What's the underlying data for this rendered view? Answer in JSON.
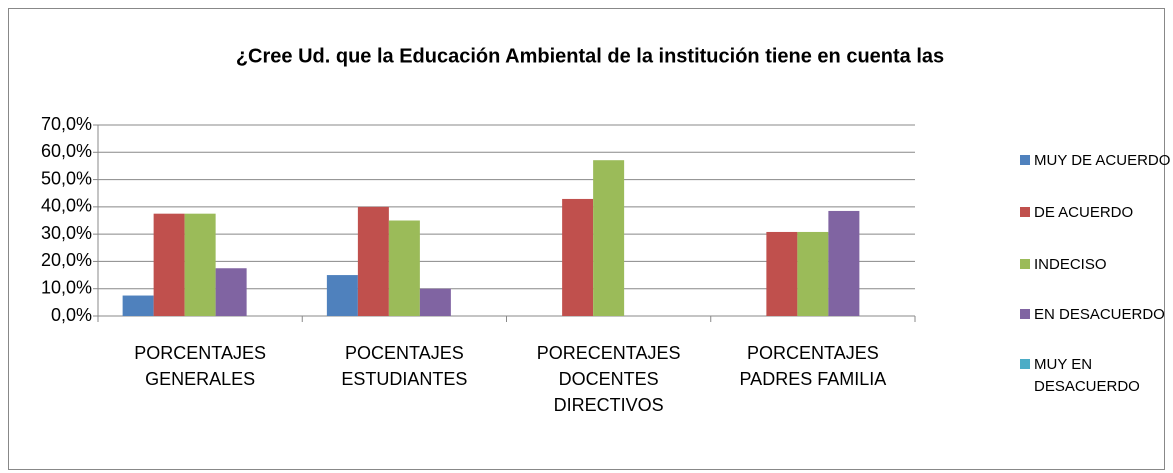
{
  "chart_data": {
    "type": "bar",
    "title": "¿Cree Ud. que la Educación Ambiental de la institución tiene en cuenta  las",
    "categories": [
      "PORCENTAJES GENERALES",
      "POCENTAJES ESTUDIANTES",
      "PORECENTAJES DOCENTES DIRECTIVOS",
      "PORCENTAJES PADRES FAMILIA"
    ],
    "series": [
      {
        "name": "MUY DE ACUERDO",
        "color": "#4f81bd",
        "values": [
          7.5,
          15,
          0,
          0
        ]
      },
      {
        "name": "DE ACUERDO",
        "color": "#c0504d",
        "values": [
          37.5,
          40,
          42.9,
          30.8
        ]
      },
      {
        "name": "INDECISO",
        "color": "#9bbb59",
        "values": [
          37.5,
          35,
          57.1,
          30.8
        ]
      },
      {
        "name": "EN DESACUERDO",
        "color": "#8064a2",
        "values": [
          17.5,
          10,
          0,
          38.5
        ]
      },
      {
        "name": "MUY EN DESACUERDO",
        "color": "#4bacc6",
        "values": [
          0,
          0,
          0,
          0
        ]
      }
    ],
    "ylim": [
      0,
      70
    ],
    "yticks": [
      {
        "value": 0,
        "label": "0,0%"
      },
      {
        "value": 10,
        "label": "10,0%"
      },
      {
        "value": 20,
        "label": "20,0%"
      },
      {
        "value": 30,
        "label": "30,0%"
      },
      {
        "value": 40,
        "label": "40,0%"
      },
      {
        "value": 50,
        "label": "50,0%"
      },
      {
        "value": 60,
        "label": "60,0%"
      },
      {
        "value": 70,
        "label": "70,0%"
      }
    ],
    "grid": true,
    "legend": "right"
  }
}
